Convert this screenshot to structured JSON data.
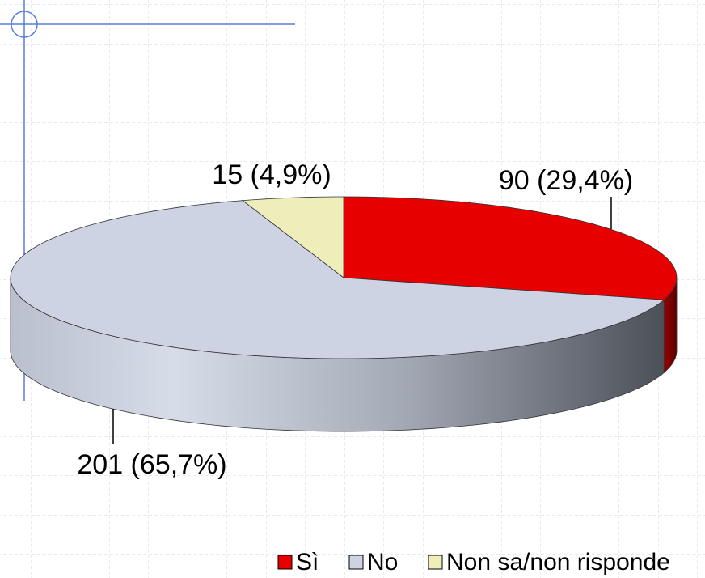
{
  "chart_data": {
    "type": "pie3d",
    "categories": [
      "Sì",
      "No",
      "Non sa/non risponde"
    ],
    "values": [
      90,
      201,
      15
    ],
    "value_labels": [
      "90 (29,4%)",
      "201 (65,7%)",
      "15 (4,9%)"
    ],
    "colors": [
      "#e60000",
      "#cdd3e2",
      "#eeeebb"
    ],
    "legend": "bottom-right"
  }
}
